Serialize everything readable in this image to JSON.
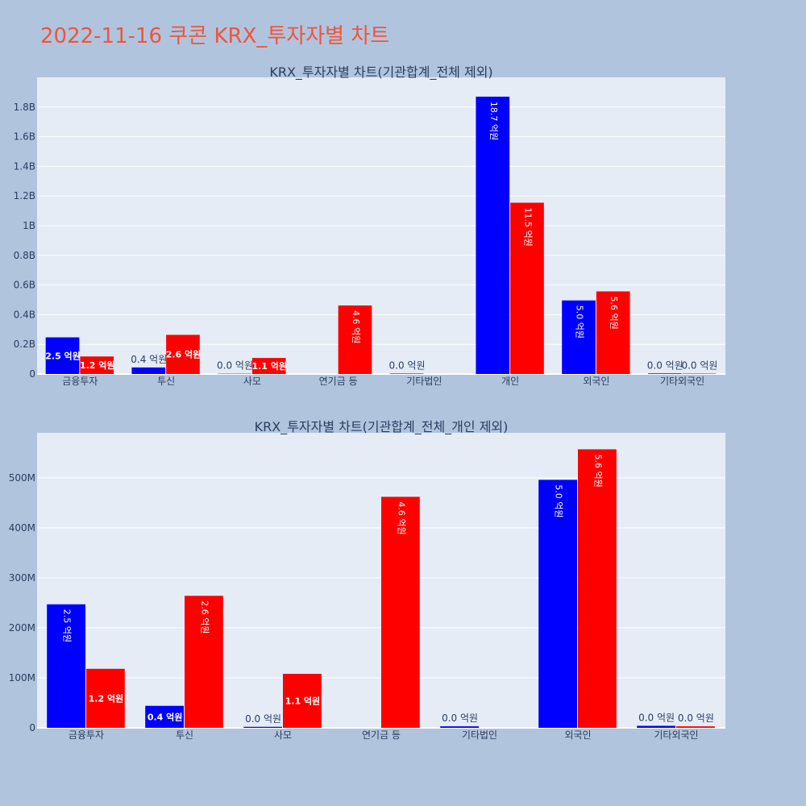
{
  "title": "2022-11-16 쿠콘 KRX_투자자별 차트",
  "colors": {
    "background": "#b0c4de",
    "plot_bg": "#e5ecf6",
    "series_a": "#0000ff",
    "series_b": "#ff0000",
    "title": "#ef553b"
  },
  "chart_data": [
    {
      "type": "bar",
      "title": "KRX_투자자별 차트(기관합계_전체 제외)",
      "categories": [
        "금융투자",
        "투신",
        "사모",
        "연기금 등",
        "기타법인",
        "개인",
        "외국인",
        "기타외국인"
      ],
      "series": [
        {
          "color": "#0000ff",
          "values": [
            247000000,
            44000000,
            2000000,
            0,
            3000000,
            1870000000,
            496000000,
            4000000
          ],
          "labels": [
            "2.5 억원",
            "0.4 억원",
            "0.0 억원",
            "",
            "0.0 억원",
            "18.7 억원",
            "5.0 억원",
            "0.0 억원"
          ]
        },
        {
          "color": "#ff0000",
          "values": [
            118000000,
            264000000,
            108000000,
            462000000,
            0,
            1155000000,
            557000000,
            3000000
          ],
          "labels": [
            "1.2 억원",
            "2.6 억원",
            "1.1 억원",
            "4.6 억원",
            "",
            "11.5 억원",
            "5.6 억원",
            "0.0 억원"
          ]
        }
      ],
      "ylim": [
        0,
        2000000000
      ],
      "yticks": [
        0,
        200000000,
        400000000,
        600000000,
        800000000,
        1000000000,
        1200000000,
        1400000000,
        1600000000,
        1800000000
      ],
      "ytick_labels": [
        "0",
        "0.2B",
        "0.4B",
        "0.6B",
        "0.8B",
        "1B",
        "1.2B",
        "1.4B",
        "1.6B",
        "1.8B"
      ],
      "grid": true
    },
    {
      "type": "bar",
      "title": "KRX_투자자별 차트(기관합계_전체_개인 제외)",
      "categories": [
        "금융투자",
        "투신",
        "사모",
        "연기금 등",
        "기타법인",
        "외국인",
        "기타외국인"
      ],
      "series": [
        {
          "color": "#0000ff",
          "values": [
            247000000,
            44000000,
            2000000,
            0,
            3000000,
            496000000,
            4000000
          ],
          "labels": [
            "2.5 억원",
            "0.4 억원",
            "0.0 억원",
            "",
            "0.0 억원",
            "5.0 억원",
            "0.0 억원"
          ]
        },
        {
          "color": "#ff0000",
          "values": [
            118000000,
            264000000,
            108000000,
            462000000,
            0,
            557000000,
            3000000
          ],
          "labels": [
            "1.2 억원",
            "2.6 억원",
            "1.1 억원",
            "4.6 억원",
            "",
            "5.6 억원",
            "0.0 억원"
          ]
        }
      ],
      "ylim": [
        0,
        590000000
      ],
      "yticks": [
        0,
        100000000,
        200000000,
        300000000,
        400000000,
        500000000
      ],
      "ytick_labels": [
        "0",
        "100M",
        "200M",
        "300M",
        "400M",
        "500M"
      ],
      "grid": true
    }
  ]
}
